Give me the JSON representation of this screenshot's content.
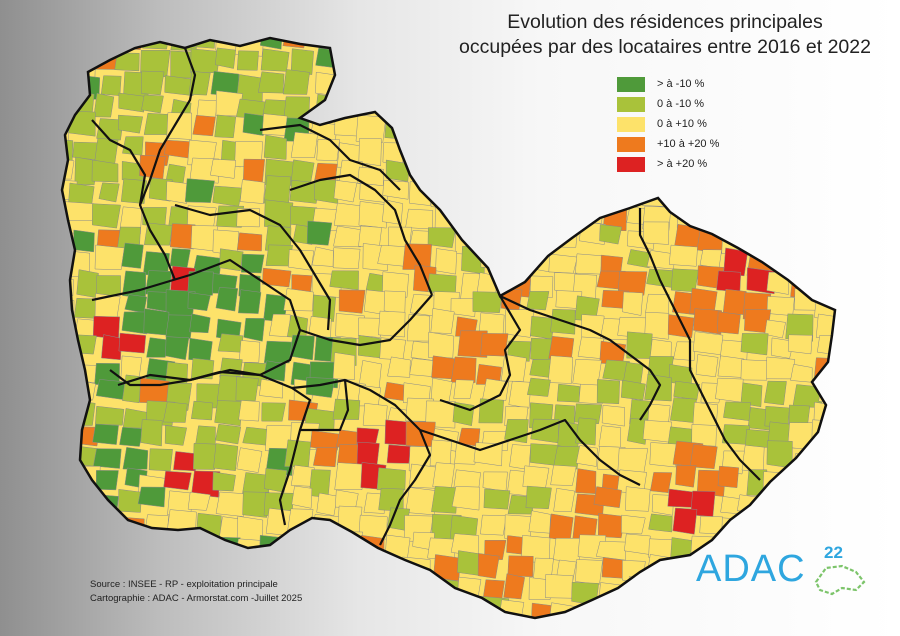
{
  "title_line1": "Evolution des résidences principales",
  "title_line2": "occupées par des locataires entre 2016 et 2022",
  "legend": [
    {
      "label": "> à -10 %",
      "color": "#4f9a3a"
    },
    {
      "label": "0 à -10 %",
      "color": "#a9c23a"
    },
    {
      "label": "0 à +10 %",
      "color": "#fde26a"
    },
    {
      "label": "+10 à +20 %",
      "color": "#ee7a1e"
    },
    {
      "label": "> à +20 %",
      "color": "#dd2222"
    }
  ],
  "source_line1": "Source : INSEE - RP - exploitation principale",
  "source_line2": "Cartographie : ADAC - Armorstat.com -Juillet 2025",
  "logo_text": "ADAC",
  "logo_sup": "22"
}
